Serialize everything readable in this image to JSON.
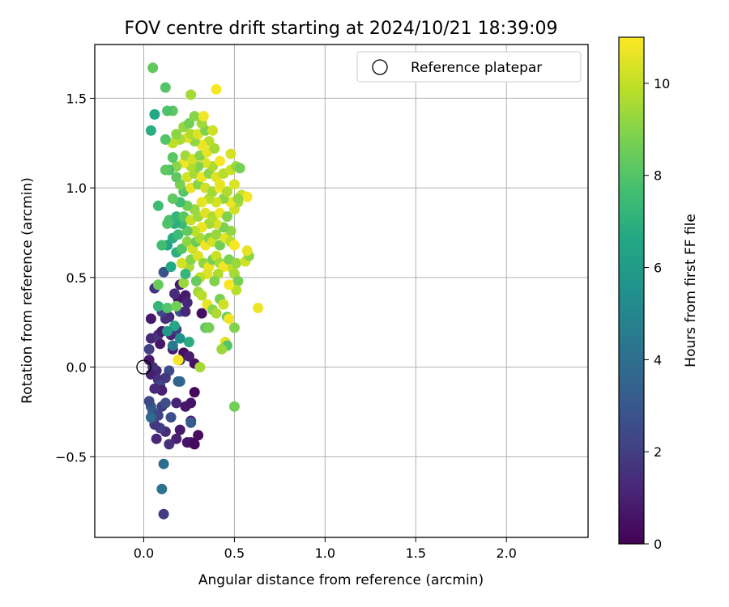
{
  "chart_data": {
    "type": "scatter",
    "title": "FOV centre drift starting at 2024/10/21 18:39:09",
    "xlabel": "Angular distance from reference (arcmin)",
    "ylabel": "Rotation from reference (arcmin)",
    "xlim": [
      -0.27,
      2.45
    ],
    "ylim": [
      -0.95,
      1.8
    ],
    "xticks": [
      0.0,
      0.5,
      1.0,
      1.5,
      2.0
    ],
    "xtick_labels": [
      "0.0",
      "0.5",
      "1.0",
      "1.5",
      "2.0"
    ],
    "yticks": [
      -0.5,
      0.0,
      0.5,
      1.0,
      1.5
    ],
    "ytick_labels": [
      "−0.5",
      "0.0",
      "0.5",
      "1.0",
      "1.5"
    ],
    "grid": true,
    "legend": {
      "location": "top-right",
      "entries": [
        "Reference platepar"
      ]
    },
    "reference_point": {
      "x": 0.0,
      "y": 0.0,
      "label": "Reference platepar"
    },
    "colorbar": {
      "label": "Hours from first FF file",
      "colormap": "viridis",
      "range": [
        0,
        11
      ],
      "ticks": [
        0,
        2,
        4,
        6,
        8,
        10
      ],
      "tick_labels": [
        "0",
        "2",
        "4",
        "6",
        "8",
        "10"
      ]
    },
    "points": [
      [
        0.3,
        -0.38,
        0.4
      ],
      [
        0.26,
        -0.42,
        0.5
      ],
      [
        0.24,
        -0.42,
        0.6
      ],
      [
        0.28,
        -0.43,
        0.3
      ],
      [
        0.18,
        -0.4,
        1.0
      ],
      [
        0.14,
        -0.43,
        1.5
      ],
      [
        0.07,
        -0.4,
        1.2
      ],
      [
        0.12,
        -0.36,
        1.4
      ],
      [
        0.09,
        -0.34,
        2.0
      ],
      [
        0.06,
        -0.32,
        1.8
      ],
      [
        0.2,
        -0.35,
        0.8
      ],
      [
        0.26,
        -0.3,
        1.0
      ],
      [
        0.23,
        -0.22,
        0.7
      ],
      [
        0.26,
        -0.2,
        0.6
      ],
      [
        0.28,
        -0.14,
        0.2
      ],
      [
        0.1,
        -0.22,
        2.0
      ],
      [
        0.12,
        -0.2,
        2.6
      ],
      [
        0.05,
        -0.25,
        2.8
      ],
      [
        0.04,
        -0.22,
        3.1
      ],
      [
        0.03,
        -0.19,
        2.4
      ],
      [
        0.08,
        -0.27,
        2.2
      ],
      [
        0.15,
        -0.28,
        2.7
      ],
      [
        0.04,
        -0.28,
        3.8
      ],
      [
        0.26,
        -0.31,
        3.2
      ],
      [
        0.11,
        -0.54,
        3.9
      ],
      [
        0.1,
        -0.68,
        4.2
      ],
      [
        0.11,
        -0.82,
        1.9
      ],
      [
        0.2,
        -0.08,
        3.9
      ],
      [
        0.19,
        -0.08,
        3.5
      ],
      [
        0.18,
        -0.2,
        1.1
      ],
      [
        0.14,
        -0.02,
        2.5
      ],
      [
        0.12,
        -0.06,
        1.8
      ],
      [
        0.07,
        -0.02,
        1.2
      ],
      [
        0.05,
        0.0,
        1.5
      ],
      [
        0.04,
        -0.04,
        0.9
      ],
      [
        0.08,
        -0.07,
        1.6
      ],
      [
        0.09,
        -0.1,
        2.2
      ],
      [
        0.1,
        -0.13,
        1.0
      ],
      [
        0.06,
        -0.12,
        1.3
      ],
      [
        0.03,
        0.04,
        0.8
      ],
      [
        0.2,
        0.04,
        1.7
      ],
      [
        0.28,
        0.02,
        0.5
      ],
      [
        0.22,
        0.08,
        0.4
      ],
      [
        0.25,
        0.06,
        0.9
      ],
      [
        0.16,
        0.1,
        0.9
      ],
      [
        0.09,
        0.13,
        0.7
      ],
      [
        0.04,
        0.16,
        1.2
      ],
      [
        0.08,
        0.18,
        1.6
      ],
      [
        0.03,
        0.1,
        2.1
      ],
      [
        0.1,
        0.2,
        0.8
      ],
      [
        0.15,
        0.18,
        1.1
      ],
      [
        0.18,
        0.21,
        1.9
      ],
      [
        0.16,
        0.12,
        4.4
      ],
      [
        0.2,
        0.16,
        5.5
      ],
      [
        0.25,
        0.14,
        6.8
      ],
      [
        0.17,
        0.23,
        6.6
      ],
      [
        0.13,
        0.2,
        5.9
      ],
      [
        0.14,
        0.28,
        1.2
      ],
      [
        0.12,
        0.27,
        1.5
      ],
      [
        0.04,
        0.27,
        0.7
      ],
      [
        0.1,
        0.31,
        2.3
      ],
      [
        0.2,
        0.31,
        2.7
      ],
      [
        0.23,
        0.31,
        1.2
      ],
      [
        0.19,
        0.38,
        0.7
      ],
      [
        0.17,
        0.41,
        1.4
      ],
      [
        0.23,
        0.4,
        0.8
      ],
      [
        0.06,
        0.44,
        1.6
      ],
      [
        0.11,
        0.53,
        2.8
      ],
      [
        0.2,
        0.46,
        0.9
      ],
      [
        0.22,
        0.47,
        9.3
      ],
      [
        0.08,
        0.46,
        8.4
      ],
      [
        0.08,
        0.34,
        7.2
      ],
      [
        0.13,
        0.33,
        8.0
      ],
      [
        0.18,
        0.34,
        8.6
      ],
      [
        0.24,
        0.36,
        1.2
      ],
      [
        0.32,
        0.3,
        0.4
      ],
      [
        0.34,
        0.22,
        8.3
      ],
      [
        0.36,
        0.22,
        8.7
      ],
      [
        0.3,
        0.42,
        9.4
      ],
      [
        0.32,
        0.4,
        9.8
      ],
      [
        0.35,
        0.35,
        10.6
      ],
      [
        0.38,
        0.32,
        9.0
      ],
      [
        0.4,
        0.3,
        9.6
      ],
      [
        0.42,
        0.38,
        8.8
      ],
      [
        0.44,
        0.35,
        10.2
      ],
      [
        0.46,
        0.28,
        8.4
      ],
      [
        0.47,
        0.27,
        10.8
      ],
      [
        0.5,
        0.22,
        8.9
      ],
      [
        0.45,
        0.14,
        10.5
      ],
      [
        0.46,
        0.12,
        8.0
      ],
      [
        0.43,
        0.1,
        9.3
      ],
      [
        0.31,
        0.0,
        9.5
      ],
      [
        0.5,
        -0.22,
        8.6
      ],
      [
        0.19,
        0.04,
        10.9
      ],
      [
        0.63,
        0.33,
        10.7
      ],
      [
        0.25,
        0.56,
        9.6
      ],
      [
        0.21,
        0.58,
        10.3
      ],
      [
        0.26,
        0.6,
        9.0
      ],
      [
        0.3,
        0.62,
        10.4
      ],
      [
        0.33,
        0.58,
        9.2
      ],
      [
        0.36,
        0.56,
        10.7
      ],
      [
        0.38,
        0.6,
        8.7
      ],
      [
        0.4,
        0.62,
        10.1
      ],
      [
        0.42,
        0.58,
        9.4
      ],
      [
        0.44,
        0.56,
        10.8
      ],
      [
        0.47,
        0.6,
        8.8
      ],
      [
        0.49,
        0.55,
        10.0
      ],
      [
        0.51,
        0.58,
        9.3
      ],
      [
        0.56,
        0.59,
        10.2
      ],
      [
        0.58,
        0.62,
        9.1
      ],
      [
        0.57,
        0.65,
        10.6
      ],
      [
        0.5,
        0.52,
        9.5
      ],
      [
        0.52,
        0.48,
        8.7
      ],
      [
        0.51,
        0.43,
        9.8
      ],
      [
        0.47,
        0.46,
        10.9
      ],
      [
        0.41,
        0.52,
        9.7
      ],
      [
        0.39,
        0.48,
        8.9
      ],
      [
        0.35,
        0.52,
        10.5
      ],
      [
        0.31,
        0.5,
        9.9
      ],
      [
        0.29,
        0.48,
        8.4
      ],
      [
        0.23,
        0.52,
        7.2
      ],
      [
        0.15,
        0.56,
        6.6
      ],
      [
        0.18,
        0.64,
        7.0
      ],
      [
        0.13,
        0.68,
        6.3
      ],
      [
        0.1,
        0.68,
        7.6
      ],
      [
        0.16,
        0.72,
        6.8
      ],
      [
        0.19,
        0.74,
        7.5
      ],
      [
        0.21,
        0.66,
        8.0
      ],
      [
        0.24,
        0.7,
        9.1
      ],
      [
        0.27,
        0.66,
        10.2
      ],
      [
        0.29,
        0.7,
        8.5
      ],
      [
        0.31,
        0.72,
        9.6
      ],
      [
        0.34,
        0.68,
        10.8
      ],
      [
        0.36,
        0.72,
        9.0
      ],
      [
        0.38,
        0.7,
        10.3
      ],
      [
        0.4,
        0.74,
        9.3
      ],
      [
        0.42,
        0.68,
        8.6
      ],
      [
        0.45,
        0.72,
        10.6
      ],
      [
        0.48,
        0.7,
        9.8
      ],
      [
        0.5,
        0.68,
        10.9
      ],
      [
        0.48,
        0.76,
        9.2
      ],
      [
        0.44,
        0.78,
        8.8
      ],
      [
        0.4,
        0.8,
        10.4
      ],
      [
        0.36,
        0.8,
        9.5
      ],
      [
        0.32,
        0.78,
        10.7
      ],
      [
        0.28,
        0.76,
        9.9
      ],
      [
        0.24,
        0.76,
        8.3
      ],
      [
        0.21,
        0.8,
        7.4
      ],
      [
        0.17,
        0.8,
        6.9
      ],
      [
        0.13,
        0.8,
        8.0
      ],
      [
        0.14,
        0.82,
        7.8
      ],
      [
        0.18,
        0.84,
        7.2
      ],
      [
        0.22,
        0.84,
        8.1
      ],
      [
        0.26,
        0.82,
        10.1
      ],
      [
        0.3,
        0.84,
        9.4
      ],
      [
        0.34,
        0.86,
        10.5
      ],
      [
        0.38,
        0.84,
        9.7
      ],
      [
        0.42,
        0.86,
        10.8
      ],
      [
        0.46,
        0.84,
        8.9
      ],
      [
        0.5,
        0.88,
        10.2
      ],
      [
        0.52,
        0.92,
        9.6
      ],
      [
        0.48,
        0.92,
        10.7
      ],
      [
        0.44,
        0.94,
        9.1
      ],
      [
        0.4,
        0.92,
        10.3
      ],
      [
        0.36,
        0.94,
        9.8
      ],
      [
        0.32,
        0.92,
        10.6
      ],
      [
        0.28,
        0.88,
        9.3
      ],
      [
        0.24,
        0.9,
        8.6
      ],
      [
        0.2,
        0.92,
        7.6
      ],
      [
        0.16,
        0.94,
        8.3
      ],
      [
        0.08,
        0.9,
        7.5
      ],
      [
        0.22,
        0.98,
        8.1
      ],
      [
        0.26,
        1.0,
        10.6
      ],
      [
        0.3,
        1.02,
        9.0
      ],
      [
        0.34,
        1.0,
        10.2
      ],
      [
        0.38,
        0.98,
        9.4
      ],
      [
        0.42,
        1.0,
        10.9
      ],
      [
        0.46,
        0.98,
        9.7
      ],
      [
        0.5,
        1.02,
        10.4
      ],
      [
        0.54,
        0.96,
        10.1
      ],
      [
        0.57,
        0.95,
        10.8
      ],
      [
        0.52,
        0.94,
        9.2
      ],
      [
        0.2,
        1.02,
        8.8
      ],
      [
        0.18,
        1.06,
        8.3
      ],
      [
        0.24,
        1.06,
        10.3
      ],
      [
        0.28,
        1.08,
        9.5
      ],
      [
        0.32,
        1.06,
        10.8
      ],
      [
        0.36,
        1.08,
        9.1
      ],
      [
        0.4,
        1.06,
        10.5
      ],
      [
        0.44,
        1.08,
        9.8
      ],
      [
        0.48,
        1.1,
        10.1
      ],
      [
        0.51,
        1.12,
        9.3
      ],
      [
        0.53,
        1.11,
        8.7
      ],
      [
        0.42,
        1.02,
        10.6
      ],
      [
        0.38,
        1.12,
        9.6
      ],
      [
        0.34,
        1.14,
        10.4
      ],
      [
        0.3,
        1.12,
        8.9
      ],
      [
        0.26,
        1.12,
        9.7
      ],
      [
        0.22,
        1.14,
        10.8
      ],
      [
        0.18,
        1.12,
        9.1
      ],
      [
        0.14,
        1.1,
        7.9
      ],
      [
        0.12,
        1.1,
        8.2
      ],
      [
        0.16,
        1.17,
        8.1
      ],
      [
        0.23,
        1.18,
        9.4
      ],
      [
        0.27,
        1.16,
        10.2
      ],
      [
        0.31,
        1.18,
        9.0
      ],
      [
        0.35,
        1.2,
        10.6
      ],
      [
        0.39,
        1.22,
        9.5
      ],
      [
        0.42,
        1.15,
        10.9
      ],
      [
        0.48,
        1.19,
        10.3
      ],
      [
        0.36,
        1.26,
        9.8
      ],
      [
        0.32,
        1.24,
        10.7
      ],
      [
        0.28,
        1.26,
        9.2
      ],
      [
        0.24,
        1.28,
        10.5
      ],
      [
        0.2,
        1.27,
        9.6
      ],
      [
        0.16,
        1.25,
        9.9
      ],
      [
        0.12,
        1.27,
        8.0
      ],
      [
        0.26,
        1.3,
        9.7
      ],
      [
        0.3,
        1.3,
        10.4
      ],
      [
        0.34,
        1.32,
        8.9
      ],
      [
        0.38,
        1.32,
        10.2
      ],
      [
        0.22,
        1.34,
        9.3
      ],
      [
        0.18,
        1.3,
        9.1
      ],
      [
        0.25,
        1.36,
        8.6
      ],
      [
        0.32,
        1.36,
        9.4
      ],
      [
        0.28,
        1.4,
        9.0
      ],
      [
        0.33,
        1.4,
        10.8
      ],
      [
        0.16,
        1.43,
        8.2
      ],
      [
        0.12,
        1.56,
        8.0
      ],
      [
        0.26,
        1.52,
        9.5
      ],
      [
        0.4,
        1.55,
        10.9
      ],
      [
        0.05,
        1.67,
        8.3
      ],
      [
        0.06,
        1.41,
        6.6
      ],
      [
        0.04,
        1.32,
        6.9
      ],
      [
        0.13,
        1.43,
        7.9
      ]
    ]
  }
}
